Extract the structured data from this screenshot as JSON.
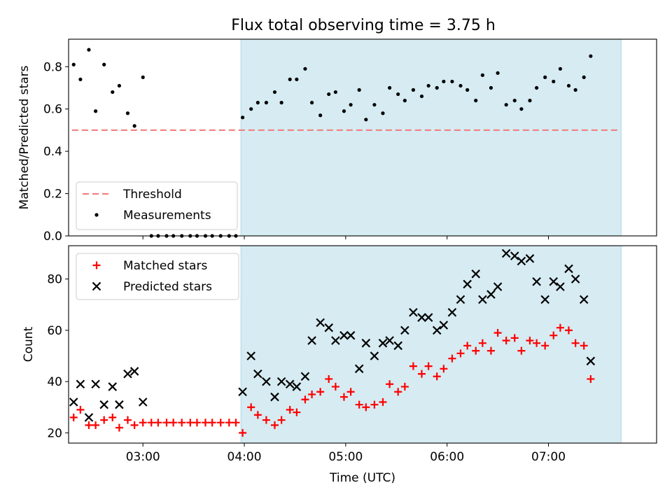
{
  "figure": {
    "title": "Flux total observing time = 3.75 h"
  },
  "colors": {
    "shade": "#add8e6",
    "threshold": "#f28080",
    "measure": "#000000",
    "matched": "#ff0000",
    "predicted": "#000000"
  },
  "chart_data": [
    {
      "type": "scatter",
      "ylabel": "Matched/Predicted stars",
      "ylim": [
        0,
        0.93
      ],
      "yticks": [
        0.0,
        0.2,
        0.4,
        0.6,
        0.8
      ],
      "ytick_labels": [
        "0.0",
        "0.2",
        "0.4",
        "0.6",
        "0.8"
      ],
      "xlim": [
        "02:16",
        "08:04"
      ],
      "shaded_region": [
        "03:58",
        "07:43"
      ],
      "legend": {
        "position": "lower-left",
        "entries": [
          "Threshold",
          "Measurements"
        ]
      },
      "threshold": {
        "name": "Threshold",
        "value": 0.5,
        "x_range": [
          "02:18",
          "07:42"
        ]
      },
      "series": [
        {
          "name": "Measurements",
          "points": [
            [
              "02:19",
              0.81
            ],
            [
              "02:23",
              0.74
            ],
            [
              "02:28",
              0.88
            ],
            [
              "02:32",
              0.59
            ],
            [
              "02:37",
              0.81
            ],
            [
              "02:42",
              0.68
            ],
            [
              "02:46",
              0.71
            ],
            [
              "02:51",
              0.58
            ],
            [
              "02:55",
              0.52
            ],
            [
              "03:00",
              0.75
            ],
            [
              "03:05",
              0.0
            ],
            [
              "03:09",
              0.0
            ],
            [
              "03:14",
              0.0
            ],
            [
              "03:18",
              0.0
            ],
            [
              "03:23",
              0.0
            ],
            [
              "03:28",
              0.0
            ],
            [
              "03:32",
              0.0
            ],
            [
              "03:37",
              0.0
            ],
            [
              "03:41",
              0.0
            ],
            [
              "03:46",
              0.0
            ],
            [
              "03:51",
              0.0
            ],
            [
              "03:55",
              0.0
            ],
            [
              "03:59",
              0.56
            ],
            [
              "04:04",
              0.6
            ],
            [
              "04:08",
              0.63
            ],
            [
              "04:13",
              0.63
            ],
            [
              "04:18",
              0.68
            ],
            [
              "04:22",
              0.63
            ],
            [
              "04:27",
              0.74
            ],
            [
              "04:31",
              0.74
            ],
            [
              "04:36",
              0.79
            ],
            [
              "04:40",
              0.63
            ],
            [
              "04:45",
              0.57
            ],
            [
              "04:50",
              0.67
            ],
            [
              "04:54",
              0.68
            ],
            [
              "04:59",
              0.59
            ],
            [
              "05:03",
              0.62
            ],
            [
              "05:08",
              0.69
            ],
            [
              "05:12",
              0.55
            ],
            [
              "05:17",
              0.62
            ],
            [
              "05:22",
              0.58
            ],
            [
              "05:26",
              0.7
            ],
            [
              "05:31",
              0.67
            ],
            [
              "05:35",
              0.64
            ],
            [
              "05:40",
              0.69
            ],
            [
              "05:45",
              0.66
            ],
            [
              "05:49",
              0.71
            ],
            [
              "05:54",
              0.7
            ],
            [
              "05:58",
              0.73
            ],
            [
              "06:03",
              0.73
            ],
            [
              "06:08",
              0.71
            ],
            [
              "06:12",
              0.69
            ],
            [
              "06:17",
              0.64
            ],
            [
              "06:21",
              0.76
            ],
            [
              "06:26",
              0.7
            ],
            [
              "06:30",
              0.77
            ],
            [
              "06:35",
              0.62
            ],
            [
              "06:40",
              0.64
            ],
            [
              "06:44",
              0.6
            ],
            [
              "06:49",
              0.64
            ],
            [
              "06:53",
              0.7
            ],
            [
              "06:58",
              0.75
            ],
            [
              "07:03",
              0.73
            ],
            [
              "07:07",
              0.79
            ],
            [
              "07:12",
              0.71
            ],
            [
              "07:16",
              0.69
            ],
            [
              "07:21",
              0.75
            ],
            [
              "07:25",
              0.85
            ]
          ]
        }
      ]
    },
    {
      "type": "scatter",
      "xlabel": "Time (UTC)",
      "ylabel": "Count",
      "ylim": [
        16,
        93
      ],
      "yticks": [
        20,
        40,
        60,
        80
      ],
      "ytick_labels": [
        "20",
        "40",
        "60",
        "80"
      ],
      "xticks": [
        "03:00",
        "04:00",
        "05:00",
        "06:00",
        "07:00"
      ],
      "xlim": [
        "02:16",
        "08:04"
      ],
      "shaded_region": [
        "03:58",
        "07:43"
      ],
      "legend": {
        "position": "upper-left",
        "entries": [
          "Matched stars",
          "Predicted stars"
        ]
      },
      "series": [
        {
          "name": "Matched stars",
          "marker": "plus",
          "points": [
            [
              "02:19",
              26
            ],
            [
              "02:23",
              29
            ],
            [
              "02:28",
              23
            ],
            [
              "02:32",
              23
            ],
            [
              "02:37",
              25
            ],
            [
              "02:42",
              26
            ],
            [
              "02:46",
              22
            ],
            [
              "02:51",
              25
            ],
            [
              "02:55",
              23
            ],
            [
              "03:00",
              24
            ],
            [
              "03:05",
              24
            ],
            [
              "03:09",
              24
            ],
            [
              "03:14",
              24
            ],
            [
              "03:18",
              24
            ],
            [
              "03:23",
              24
            ],
            [
              "03:28",
              24
            ],
            [
              "03:32",
              24
            ],
            [
              "03:37",
              24
            ],
            [
              "03:41",
              24
            ],
            [
              "03:46",
              24
            ],
            [
              "03:51",
              24
            ],
            [
              "03:55",
              24
            ],
            [
              "03:59",
              20
            ],
            [
              "04:04",
              30
            ],
            [
              "04:08",
              27
            ],
            [
              "04:13",
              25
            ],
            [
              "04:18",
              23
            ],
            [
              "04:22",
              25
            ],
            [
              "04:27",
              29
            ],
            [
              "04:31",
              28
            ],
            [
              "04:36",
              33
            ],
            [
              "04:40",
              35
            ],
            [
              "04:45",
              36
            ],
            [
              "04:50",
              41
            ],
            [
              "04:54",
              38
            ],
            [
              "04:59",
              34
            ],
            [
              "05:03",
              36
            ],
            [
              "05:08",
              31
            ],
            [
              "05:12",
              30
            ],
            [
              "05:17",
              31
            ],
            [
              "05:22",
              32
            ],
            [
              "05:26",
              39
            ],
            [
              "05:31",
              36
            ],
            [
              "05:35",
              38
            ],
            [
              "05:40",
              46
            ],
            [
              "05:45",
              43
            ],
            [
              "05:49",
              46
            ],
            [
              "05:54",
              42
            ],
            [
              "05:58",
              45
            ],
            [
              "06:03",
              49
            ],
            [
              "06:08",
              51
            ],
            [
              "06:12",
              54
            ],
            [
              "06:17",
              52
            ],
            [
              "06:21",
              55
            ],
            [
              "06:26",
              52
            ],
            [
              "06:30",
              59
            ],
            [
              "06:35",
              56
            ],
            [
              "06:40",
              57
            ],
            [
              "06:44",
              52
            ],
            [
              "06:49",
              56
            ],
            [
              "06:53",
              55
            ],
            [
              "06:58",
              54
            ],
            [
              "07:03",
              58
            ],
            [
              "07:07",
              61
            ],
            [
              "07:12",
              60
            ],
            [
              "07:16",
              55
            ],
            [
              "07:21",
              54
            ],
            [
              "07:25",
              41
            ]
          ]
        },
        {
          "name": "Predicted stars",
          "marker": "x",
          "points": [
            [
              "02:19",
              32
            ],
            [
              "02:23",
              39
            ],
            [
              "02:28",
              26
            ],
            [
              "02:32",
              39
            ],
            [
              "02:37",
              31
            ],
            [
              "02:42",
              38
            ],
            [
              "02:46",
              31
            ],
            [
              "02:51",
              43
            ],
            [
              "02:55",
              44
            ],
            [
              "03:00",
              32
            ],
            [
              "03:59",
              36
            ],
            [
              "04:04",
              50
            ],
            [
              "04:08",
              43
            ],
            [
              "04:13",
              40
            ],
            [
              "04:18",
              34
            ],
            [
              "04:22",
              40
            ],
            [
              "04:27",
              39
            ],
            [
              "04:31",
              38
            ],
            [
              "04:36",
              42
            ],
            [
              "04:40",
              56
            ],
            [
              "04:45",
              63
            ],
            [
              "04:50",
              61
            ],
            [
              "04:54",
              56
            ],
            [
              "04:59",
              58
            ],
            [
              "05:03",
              58
            ],
            [
              "05:08",
              45
            ],
            [
              "05:12",
              55
            ],
            [
              "05:17",
              50
            ],
            [
              "05:22",
              55
            ],
            [
              "05:26",
              56
            ],
            [
              "05:31",
              54
            ],
            [
              "05:35",
              60
            ],
            [
              "05:40",
              67
            ],
            [
              "05:45",
              65
            ],
            [
              "05:49",
              65
            ],
            [
              "05:54",
              60
            ],
            [
              "05:58",
              62
            ],
            [
              "06:03",
              67
            ],
            [
              "06:08",
              72
            ],
            [
              "06:12",
              78
            ],
            [
              "06:17",
              82
            ],
            [
              "06:21",
              72
            ],
            [
              "06:26",
              74
            ],
            [
              "06:30",
              77
            ],
            [
              "06:35",
              90
            ],
            [
              "06:40",
              89
            ],
            [
              "06:44",
              87
            ],
            [
              "06:49",
              88
            ],
            [
              "06:53",
              79
            ],
            [
              "06:58",
              72
            ],
            [
              "07:03",
              79
            ],
            [
              "07:07",
              77
            ],
            [
              "07:12",
              84
            ],
            [
              "07:16",
              80
            ],
            [
              "07:21",
              72
            ],
            [
              "07:25",
              48
            ]
          ]
        }
      ]
    }
  ]
}
